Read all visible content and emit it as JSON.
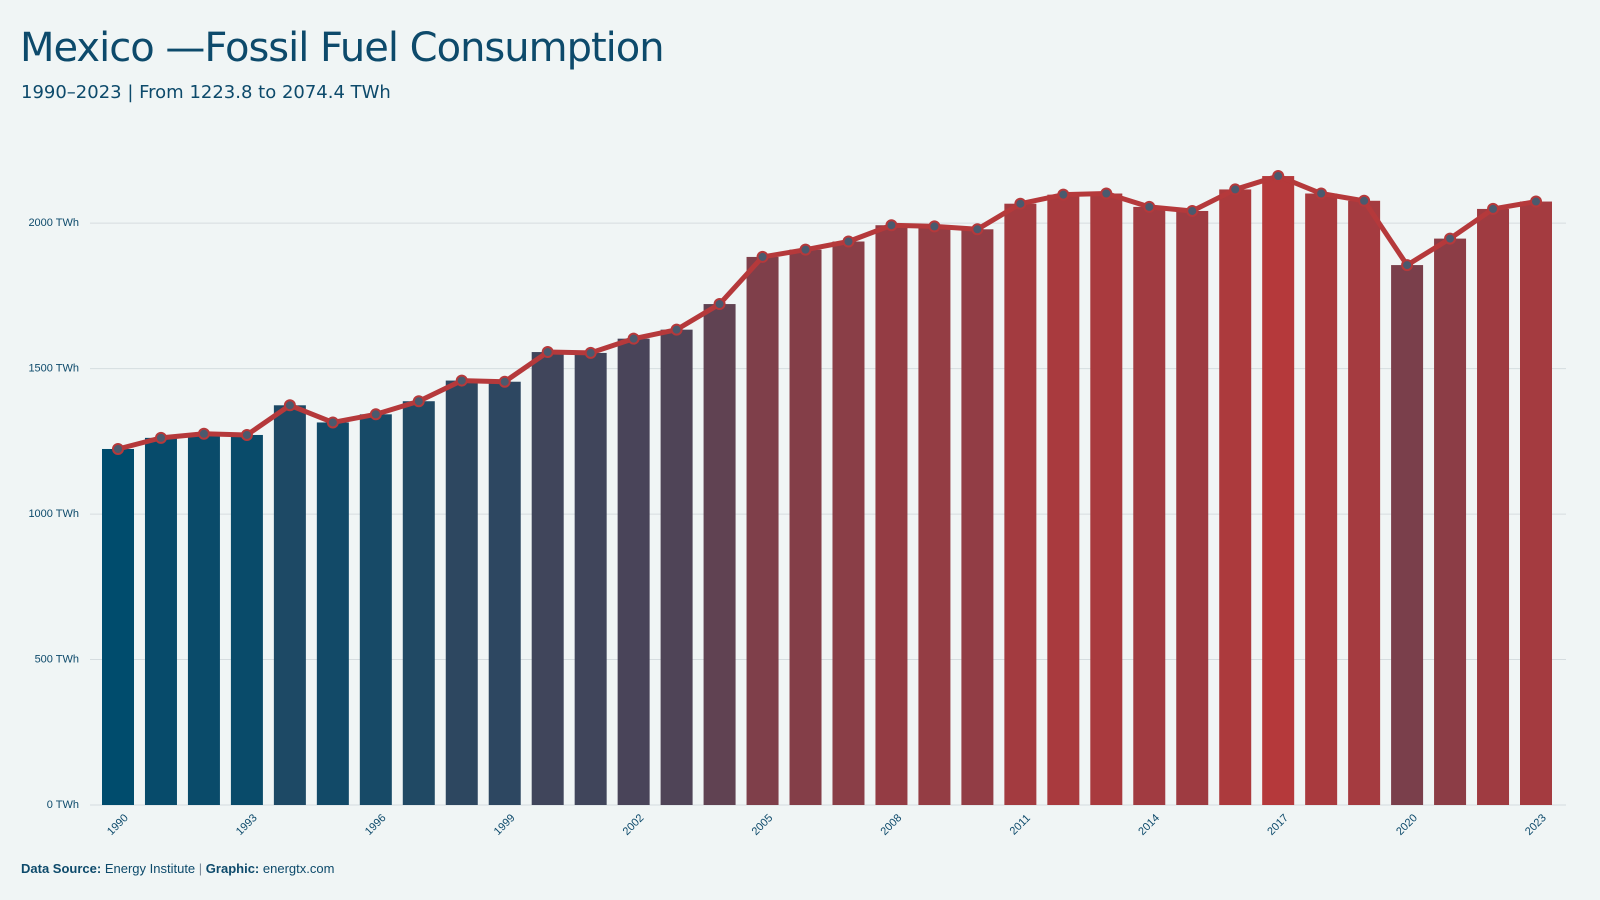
{
  "chart_data": {
    "type": "bar",
    "title": "Mexico —Fossil Fuel Consumption",
    "subtitle": "1990–2023 | From 1223.8 to 2074.4 TWh",
    "categories": [
      "1990",
      null,
      null,
      "1993",
      null,
      null,
      "1996",
      null,
      null,
      "1999",
      null,
      null,
      "2002",
      null,
      null,
      "2005",
      null,
      null,
      "2008",
      null,
      null,
      "2011",
      null,
      null,
      "2014",
      null,
      null,
      "2017",
      null,
      null,
      "2020",
      null,
      null,
      "2023"
    ],
    "values": [
      1223.8,
      1262,
      1276,
      1272,
      1374,
      1315,
      1343,
      1388,
      1459,
      1455,
      1557,
      1554,
      1603,
      1634,
      1722,
      1884,
      1909,
      1937,
      1993,
      1989,
      1979,
      2067,
      2098,
      2102,
      2056,
      2042,
      2116,
      2162,
      2102,
      2077,
      1856,
      1947,
      2049,
      2074.4
    ],
    "color_scale": [
      "#004c6d",
      "#b5393b"
    ],
    "line_color": "#b5393b",
    "ylim": [
      0,
      2200
    ],
    "yticks": [
      {
        "value": 0,
        "label": "0 TWh"
      },
      {
        "value": 500,
        "label": "500 TWh"
      },
      {
        "value": 1000,
        "label": "1000 TWh"
      },
      {
        "value": 1500,
        "label": "1500 TWh"
      },
      {
        "value": 2000,
        "label": "2000 TWh"
      }
    ],
    "grid": true
  },
  "footer": {
    "source_label": "Data Source:",
    "source": "Energy Institute",
    "separator": "|",
    "graphic_label": "Graphic:",
    "graphic": "energtx.com"
  }
}
